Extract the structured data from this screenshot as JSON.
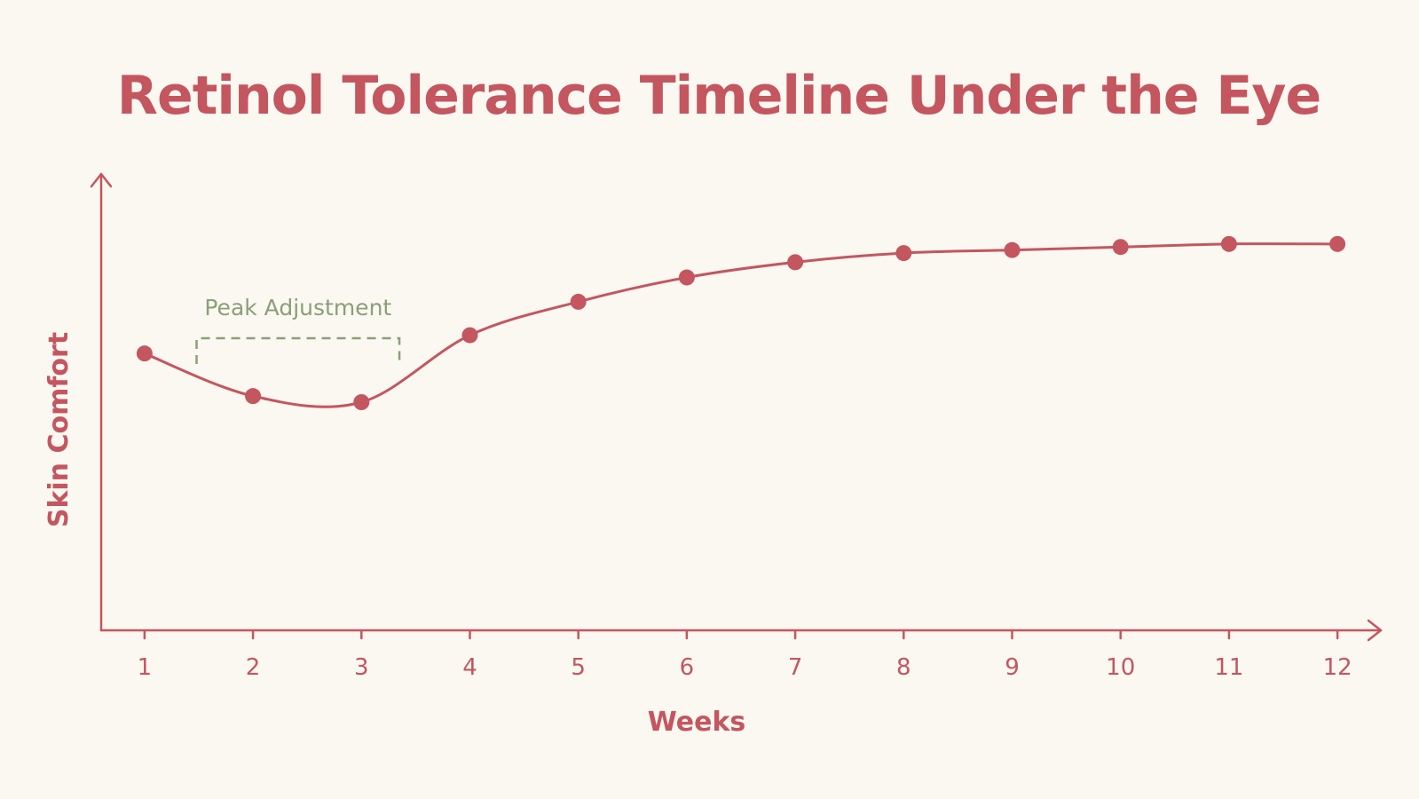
{
  "chart_data": {
    "type": "line",
    "title": "Retinol Tolerance Timeline Under the Eye",
    "xlabel": "Weeks",
    "ylabel": "Skin Comfort",
    "x": [
      1,
      2,
      3,
      4,
      5,
      6,
      7,
      8,
      9,
      10,
      11,
      12
    ],
    "tick_labels": [
      "1",
      "2",
      "3",
      "4",
      "5",
      "6",
      "7",
      "8",
      "9",
      "10",
      "11",
      "12"
    ],
    "series": [
      {
        "values": [
          41,
          27,
          25,
          47,
          58,
          66,
          71,
          74,
          75,
          76,
          77,
          77
        ]
      }
    ],
    "xlim": [
      0.6,
      12.4
    ],
    "ylim": [
      -50,
      100
    ],
    "grid": false,
    "annotations": [
      {
        "text": "Peak Adjustment",
        "x_start": 1.48,
        "x_end": 3.35,
        "y": 46
      }
    ],
    "color": "#c4565f",
    "annotation_color": "#8b9f78"
  }
}
